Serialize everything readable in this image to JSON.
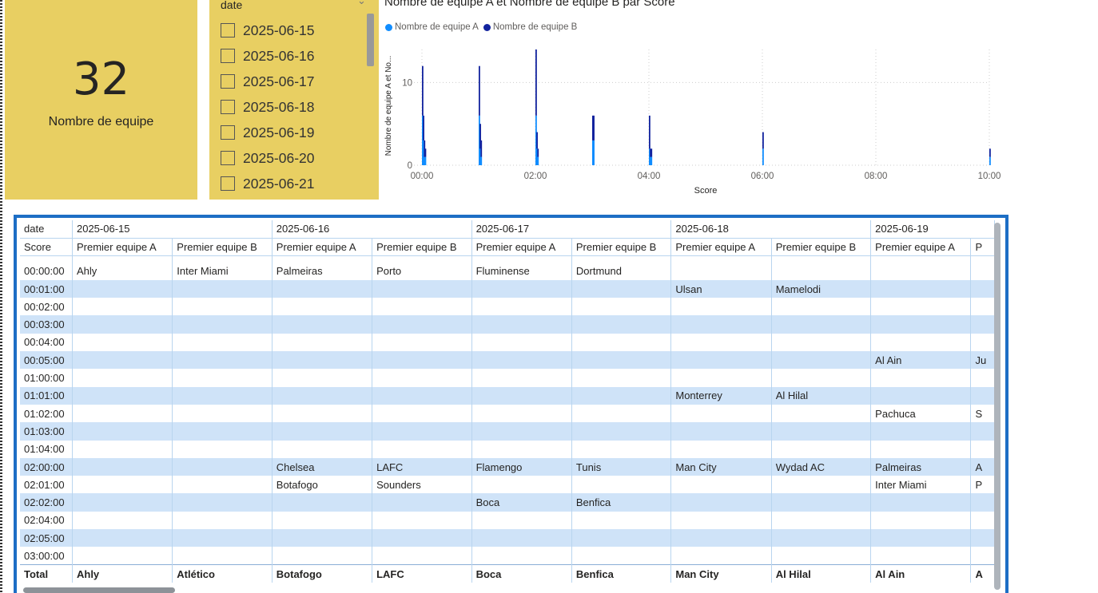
{
  "kpi": {
    "value": "32",
    "label": "Nombre de equipe"
  },
  "slicer": {
    "title": "date",
    "items": [
      "2025-06-15",
      "2025-06-16",
      "2025-06-17",
      "2025-06-18",
      "2025-06-19",
      "2025-06-20",
      "2025-06-21"
    ]
  },
  "chart_data": {
    "type": "bar",
    "title": "Nombre de equipe A et Nombre de equipe B par Score",
    "xlabel": "Score",
    "ylabel": "Nombre de equipe A et No...",
    "x_ticks": [
      "00:00",
      "02:00",
      "04:00",
      "06:00",
      "08:00",
      "10:00"
    ],
    "y_ticks": [
      "0",
      "10"
    ],
    "ylim": [
      0,
      14
    ],
    "stacked": true,
    "series": [
      {
        "name": "Nombre de equipe A",
        "color": "#118dff",
        "points": [
          [
            0,
            6
          ],
          [
            1,
            3
          ],
          [
            2,
            1
          ],
          [
            3,
            1
          ],
          [
            60,
            6
          ],
          [
            61,
            2
          ],
          [
            62,
            1
          ],
          [
            120,
            6
          ],
          [
            121,
            2
          ],
          [
            122,
            1
          ],
          [
            180,
            3
          ],
          [
            181,
            3
          ],
          [
            240,
            2
          ],
          [
            241,
            1
          ],
          [
            242,
            1
          ],
          [
            360,
            2
          ],
          [
            600,
            1
          ]
        ]
      },
      {
        "name": "Nombre de equipe B",
        "color": "#12239e",
        "points": [
          [
            0,
            6
          ],
          [
            1,
            3
          ],
          [
            2,
            2
          ],
          [
            3,
            1
          ],
          [
            60,
            6
          ],
          [
            61,
            3
          ],
          [
            62,
            2
          ],
          [
            120,
            8
          ],
          [
            121,
            2
          ],
          [
            122,
            1
          ],
          [
            180,
            3
          ],
          [
            181,
            3
          ],
          [
            240,
            4
          ],
          [
            241,
            1
          ],
          [
            242,
            1
          ],
          [
            360,
            2
          ],
          [
            600,
            1
          ]
        ]
      }
    ]
  },
  "matrix": {
    "row_header_label": "date",
    "score_label": "Score",
    "dates": [
      "2025-06-15",
      "2025-06-16",
      "2025-06-17",
      "2025-06-18",
      "2025-06-19"
    ],
    "col_a_label": "Premier equipe A",
    "col_b_label": "Premier equipe B",
    "col_p_label": "P",
    "rows": [
      {
        "score": "00:00:00",
        "cells": [
          "Ahly",
          "Inter Miami",
          "Palmeiras",
          "Porto",
          "Fluminense",
          "Dortmund",
          "",
          "",
          "",
          ""
        ]
      },
      {
        "score": "00:01:00",
        "cells": [
          "",
          "",
          "",
          "",
          "",
          "",
          "Ulsan",
          "Mamelodi",
          "",
          ""
        ]
      },
      {
        "score": "00:02:00",
        "cells": [
          "",
          "",
          "",
          "",
          "",
          "",
          "",
          "",
          "",
          ""
        ]
      },
      {
        "score": "00:03:00",
        "cells": [
          "",
          "",
          "",
          "",
          "",
          "",
          "",
          "",
          "",
          ""
        ]
      },
      {
        "score": "00:04:00",
        "cells": [
          "",
          "",
          "",
          "",
          "",
          "",
          "",
          "",
          "",
          ""
        ]
      },
      {
        "score": "00:05:00",
        "cells": [
          "",
          "",
          "",
          "",
          "",
          "",
          "",
          "",
          "Al Ain",
          "Ju"
        ]
      },
      {
        "score": "01:00:00",
        "cells": [
          "",
          "",
          "",
          "",
          "",
          "",
          "",
          "",
          "",
          ""
        ]
      },
      {
        "score": "01:01:00",
        "cells": [
          "",
          "",
          "",
          "",
          "",
          "",
          "Monterrey",
          "Al Hilal",
          "",
          ""
        ]
      },
      {
        "score": "01:02:00",
        "cells": [
          "",
          "",
          "",
          "",
          "",
          "",
          "",
          "",
          "Pachuca",
          "S"
        ]
      },
      {
        "score": "01:03:00",
        "cells": [
          "",
          "",
          "",
          "",
          "",
          "",
          "",
          "",
          "",
          ""
        ]
      },
      {
        "score": "01:04:00",
        "cells": [
          "",
          "",
          "",
          "",
          "",
          "",
          "",
          "",
          "",
          ""
        ]
      },
      {
        "score": "02:00:00",
        "cells": [
          "",
          "",
          "Chelsea",
          "LAFC",
          "Flamengo",
          "Tunis",
          "Man City",
          "Wydad AC",
          "Palmeiras",
          "A"
        ]
      },
      {
        "score": "02:01:00",
        "cells": [
          "",
          "",
          "Botafogo",
          "Sounders",
          "",
          "",
          "",
          "",
          "Inter Miami",
          "P"
        ]
      },
      {
        "score": "02:02:00",
        "cells": [
          "",
          "",
          "",
          "",
          "Boca",
          "Benfica",
          "",
          "",
          "",
          ""
        ]
      },
      {
        "score": "02:04:00",
        "cells": [
          "",
          "",
          "",
          "",
          "",
          "",
          "",
          "",
          "",
          ""
        ]
      },
      {
        "score": "02:05:00",
        "cells": [
          "",
          "",
          "",
          "",
          "",
          "",
          "",
          "",
          "",
          ""
        ]
      },
      {
        "score": "03:00:00",
        "cells": [
          "",
          "",
          "",
          "",
          "",
          "",
          "",
          "",
          "",
          ""
        ]
      }
    ],
    "total": {
      "label": "Total",
      "cells": [
        "Ahly",
        "Atlético",
        "Botafogo",
        "LAFC",
        "Boca",
        "Benfica",
        "Man City",
        "Al Hilal",
        "Al Ain",
        "A"
      ]
    }
  }
}
